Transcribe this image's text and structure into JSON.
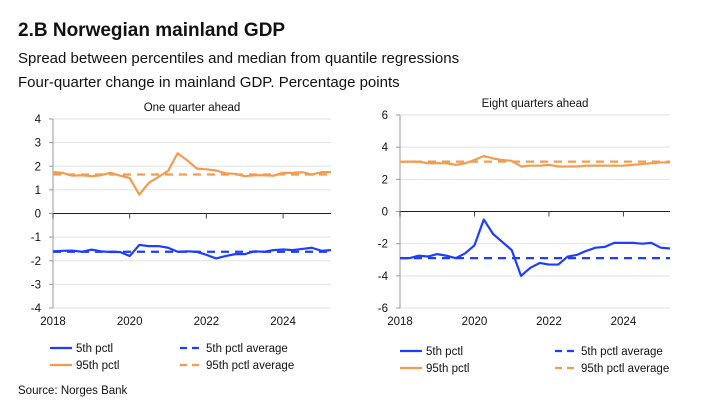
{
  "title": "2.B Norwegian mainland GDP",
  "subtitle1": "Spread between percentiles and median from quantile regressions",
  "subtitle2": "Four-quarter change in mainland GDP. Percentage points",
  "source": "Source: Norges Bank",
  "colors": {
    "blue": "#1f3dff",
    "orange": "#f39c4f"
  },
  "chart_data": [
    {
      "type": "line",
      "title": "One quarter ahead",
      "xlim": [
        2018,
        2025.25
      ],
      "ylim": [
        -4,
        4
      ],
      "xticks": [
        "2018",
        "2020",
        "2022",
        "2024"
      ],
      "yticks": [
        "4",
        "3",
        "2",
        "1",
        "0",
        "-1",
        "-2",
        "-3",
        "-4"
      ],
      "grid": true,
      "legend": "bottom",
      "x_start": "2018Q1",
      "frequency": "quarterly",
      "series": [
        {
          "name": "5th pctl",
          "color": "blue",
          "style": "solid",
          "values": [
            -1.6,
            -1.58,
            -1.57,
            -1.62,
            -1.53,
            -1.6,
            -1.63,
            -1.63,
            -1.8,
            -1.33,
            -1.38,
            -1.38,
            -1.45,
            -1.62,
            -1.6,
            -1.62,
            -1.75,
            -1.9,
            -1.8,
            -1.72,
            -1.72,
            -1.6,
            -1.62,
            -1.55,
            -1.52,
            -1.55,
            -1.5,
            -1.45,
            -1.58,
            -1.55
          ]
        },
        {
          "name": "95th pctl",
          "color": "orange",
          "style": "solid",
          "values": [
            1.75,
            1.72,
            1.6,
            1.62,
            1.58,
            1.62,
            1.72,
            1.6,
            1.5,
            0.8,
            1.3,
            1.55,
            1.8,
            2.55,
            2.25,
            1.9,
            1.87,
            1.82,
            1.7,
            1.68,
            1.58,
            1.62,
            1.62,
            1.6,
            1.72,
            1.72,
            1.75,
            1.65,
            1.75,
            1.75
          ]
        },
        {
          "name": "5th pctl average",
          "color": "blue",
          "style": "dashed",
          "value": -1.62
        },
        {
          "name": "95th pctl average",
          "color": "orange",
          "style": "dashed",
          "value": 1.65
        }
      ]
    },
    {
      "type": "line",
      "title": "Eight quarters ahead",
      "xlim": [
        2018,
        2025.25
      ],
      "ylim": [
        -6,
        6
      ],
      "xticks": [
        "2018",
        "2020",
        "2022",
        "2024"
      ],
      "yticks": [
        "6",
        "4",
        "2",
        "0",
        "-2",
        "-4",
        "-6"
      ],
      "grid": true,
      "legend": "bottom",
      "x_start": "2018Q1",
      "frequency": "quarterly",
      "series": [
        {
          "name": "5th pctl",
          "color": "blue",
          "style": "solid",
          "values": [
            -2.9,
            -2.9,
            -2.75,
            -2.8,
            -2.65,
            -2.75,
            -2.9,
            -2.6,
            -2.1,
            -0.5,
            -1.4,
            -1.9,
            -2.4,
            -4.0,
            -3.5,
            -3.2,
            -3.3,
            -3.3,
            -2.8,
            -2.7,
            -2.45,
            -2.25,
            -2.2,
            -1.95,
            -1.95,
            -1.95,
            -2.0,
            -1.95,
            -2.25,
            -2.3
          ]
        },
        {
          "name": "95th pctl",
          "color": "orange",
          "style": "solid",
          "values": [
            3.1,
            3.1,
            3.1,
            3.0,
            3.0,
            3.0,
            2.9,
            3.0,
            3.2,
            3.45,
            3.3,
            3.2,
            3.15,
            2.8,
            2.85,
            2.85,
            2.9,
            2.8,
            2.8,
            2.8,
            2.85,
            2.85,
            2.85,
            2.85,
            2.85,
            2.9,
            2.95,
            3.0,
            3.05,
            3.05
          ]
        },
        {
          "name": "5th pctl average",
          "color": "blue",
          "style": "dashed",
          "value": -2.9
        },
        {
          "name": "95th pctl average",
          "color": "orange",
          "style": "dashed",
          "value": 3.1
        }
      ]
    }
  ]
}
